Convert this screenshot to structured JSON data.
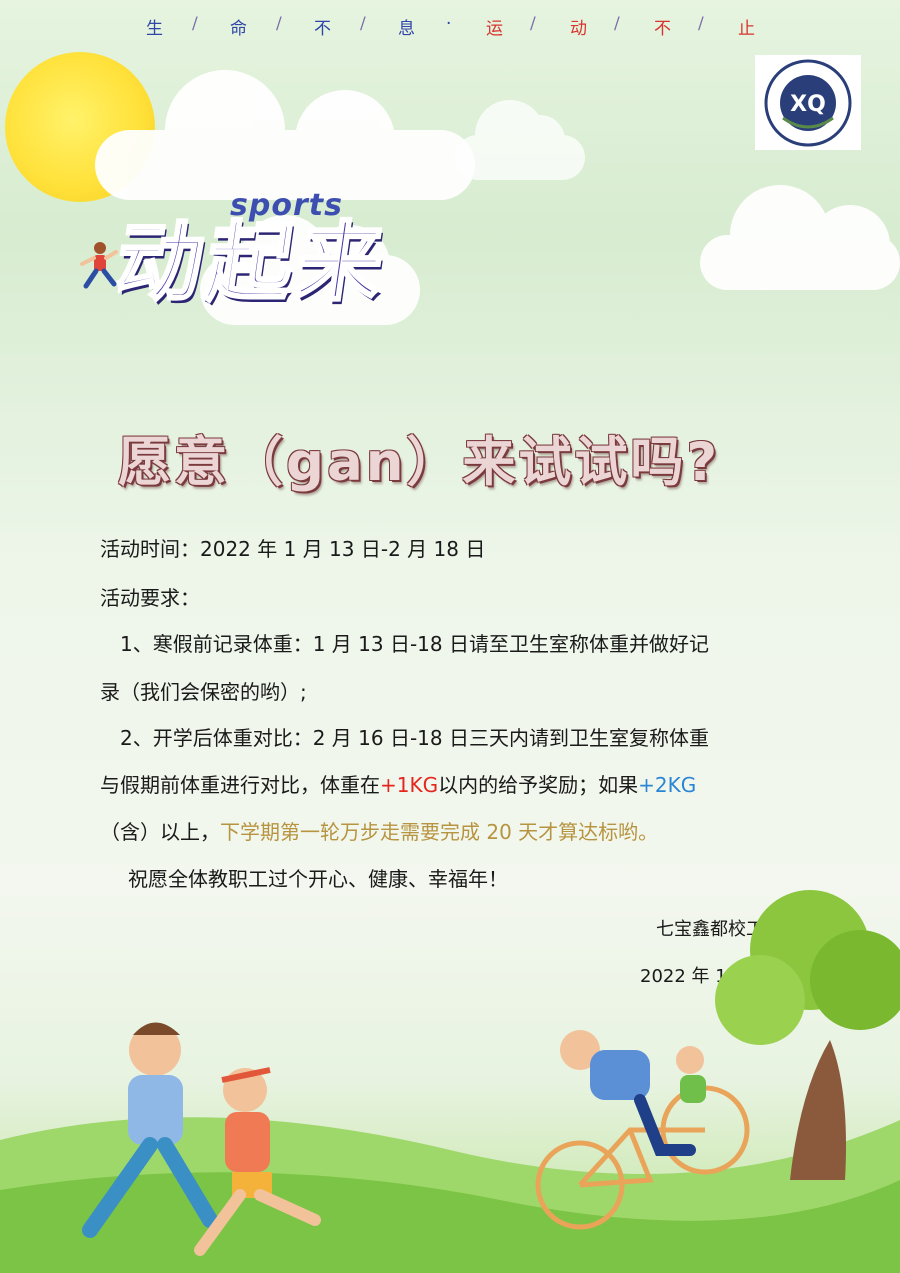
{
  "motto": {
    "chars": [
      "生",
      "命",
      "不",
      "息",
      "运",
      "动",
      "不",
      "止"
    ],
    "separator": "/",
    "dot": "·"
  },
  "logo": {
    "icon": "school-seal-icon",
    "text": "XQ"
  },
  "title_art": {
    "sports": "sports",
    "main": "动起来"
  },
  "headline": "愿意（gan）来试试吗?",
  "activity": {
    "time_label": "活动时间：",
    "time_value": "2022 年 1 月 13 日-2 月 18 日",
    "requirements_label": "活动要求：",
    "req1_line1": "1、寒假前记录体重：1 月 13 日-18 日请至卫生室称体重并做好记",
    "req1_line2": "录（我们会保密的哟）;",
    "req2_line1": "2、开学后体重对比：2 月 16 日-18 日三天内请到卫生室复称体重",
    "req2_line2_a": "与假期前体重进行对比，体重在",
    "req2_line2_red": "+1KG",
    "req2_line2_b": "以内的给予奖励；如果",
    "req2_line2_blue": "+2KG",
    "req2_line3_a": "（含）以上，",
    "req2_line3_gold": "下学期第一轮万步走需要完成 20 天才算达标哟。",
    "wish": "祝愿全体教职工过个开心、健康、幸福年！"
  },
  "signature": {
    "org": "七宝鑫都校工会",
    "date": "2022 年 1 月 12 日"
  },
  "colors": {
    "motto_blue": "#2f45a8",
    "motto_red": "#d8342d",
    "highlight_red": "#e5261f",
    "highlight_blue": "#2a86d4",
    "highlight_gold": "#b79440",
    "title_purple": "#4a3ca6"
  }
}
